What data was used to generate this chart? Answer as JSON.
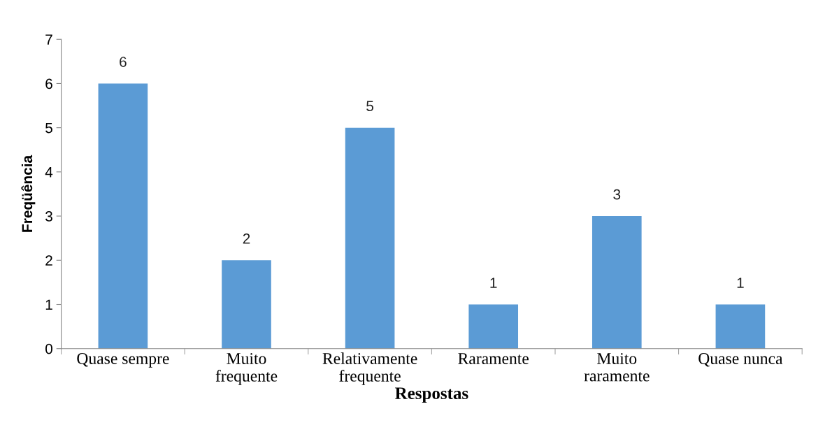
{
  "chart_data": {
    "type": "bar",
    "xlabel": "Respostas",
    "ylabel": "Freqüência",
    "categories": [
      "Quase sempre",
      "Muito\nfrequente",
      "Relativamente\nfrequente",
      "Raramente",
      "Muito\nraramente",
      "Quase nunca"
    ],
    "values": [
      6,
      2,
      5,
      1,
      3,
      1
    ],
    "color": "#5b9bd5",
    "ylim": [
      0,
      7
    ],
    "yticks": [
      0,
      1,
      2,
      3,
      4,
      5,
      6,
      7
    ],
    "grid": false,
    "data_labels": true
  }
}
